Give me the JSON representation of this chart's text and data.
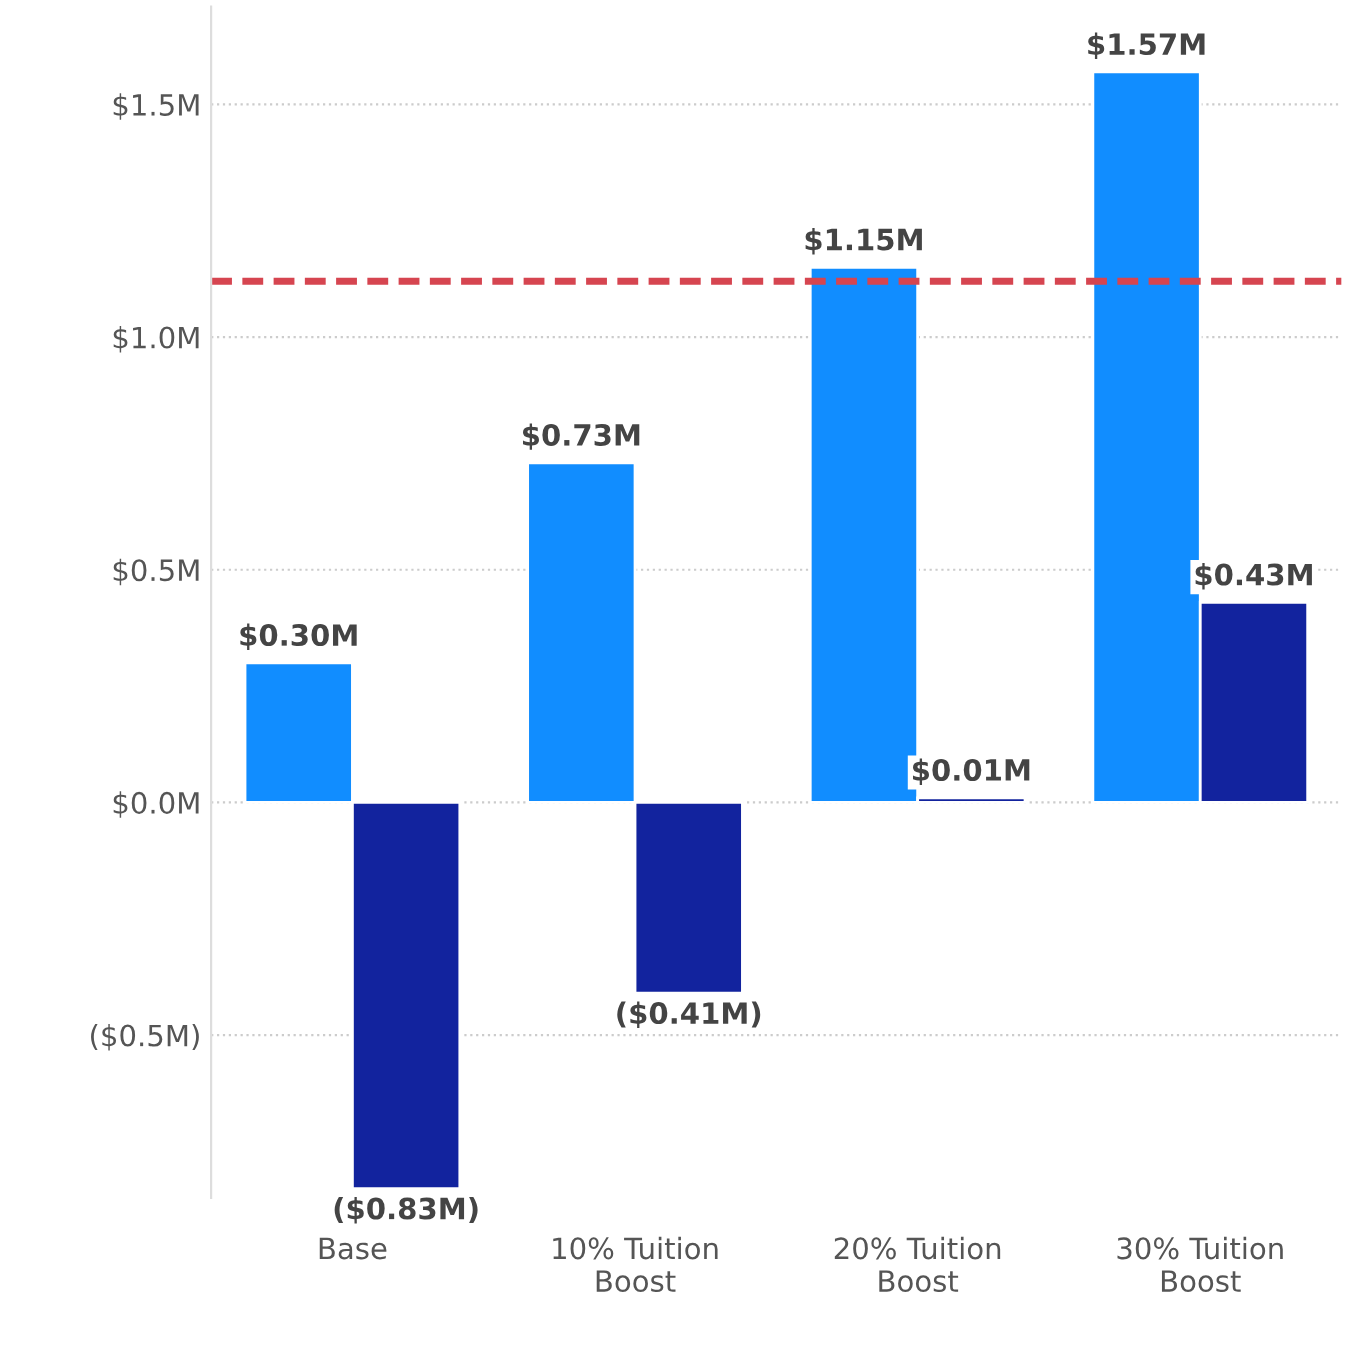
{
  "chart_data": {
    "type": "bar",
    "categories": [
      "Base",
      "10% Tuition Boost",
      "20% Tuition Boost",
      "30% Tuition Boost"
    ],
    "series": [
      {
        "color": "#118dff",
        "values": [
          0.3,
          0.73,
          1.15,
          1.57
        ],
        "value_labels": [
          "$0.30M",
          "$0.73M",
          "$1.15M",
          "$1.57M"
        ]
      },
      {
        "color": "#12239e",
        "values": [
          -0.83,
          -0.41,
          0.01,
          0.43
        ],
        "value_labels": [
          "($0.83M)",
          "($0.41M)",
          "$0.01M",
          "$0.43M"
        ]
      }
    ],
    "ylim": [
      -0.85,
      1.71
    ],
    "yticks": [
      {
        "value": -0.5,
        "label": "($0.5M)"
      },
      {
        "value": 0,
        "label": "$0.0M"
      },
      {
        "value": 0.5,
        "label": "$0.5M"
      },
      {
        "value": 1.0,
        "label": "$1.0M"
      },
      {
        "value": 1.5,
        "label": "$1.5M"
      }
    ],
    "ref_lines": [
      {
        "axis": "y",
        "value": 1.12,
        "color": "#d64550",
        "line_style": "dashed"
      }
    ],
    "grid": "y",
    "legend": false
  }
}
